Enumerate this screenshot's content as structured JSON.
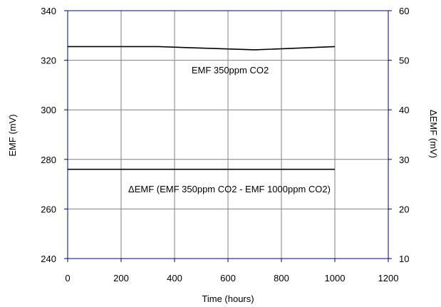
{
  "chart_data": {
    "type": "line",
    "title": "",
    "xlabel": "Time (hours)",
    "ylabel": "EMF (mV)",
    "y2label": "ΔEMF (mV)",
    "xlim": [
      0,
      1200
    ],
    "ylim": [
      240,
      340
    ],
    "y2lim": [
      10,
      60
    ],
    "x_ticks": [
      0,
      200,
      400,
      600,
      800,
      1000,
      1200
    ],
    "y_ticks": [
      240,
      260,
      280,
      300,
      320,
      340
    ],
    "y2_ticks": [
      10,
      20,
      30,
      40,
      50,
      60
    ],
    "grid": true,
    "series": [
      {
        "name": "EMF 350ppm CO2",
        "axis": "left",
        "x": [
          0,
          340,
          700,
          1000
        ],
        "y": [
          325.5,
          325.5,
          324.2,
          325.5
        ]
      },
      {
        "name": "ΔEMF (EMF 350ppm CO2 - EMF 1000ppm CO2)",
        "axis": "right",
        "x": [
          0,
          1000
        ],
        "y": [
          28,
          28
        ]
      }
    ],
    "colors": {
      "frame": "#000080",
      "line": "#000000",
      "grid": "#808080"
    }
  }
}
